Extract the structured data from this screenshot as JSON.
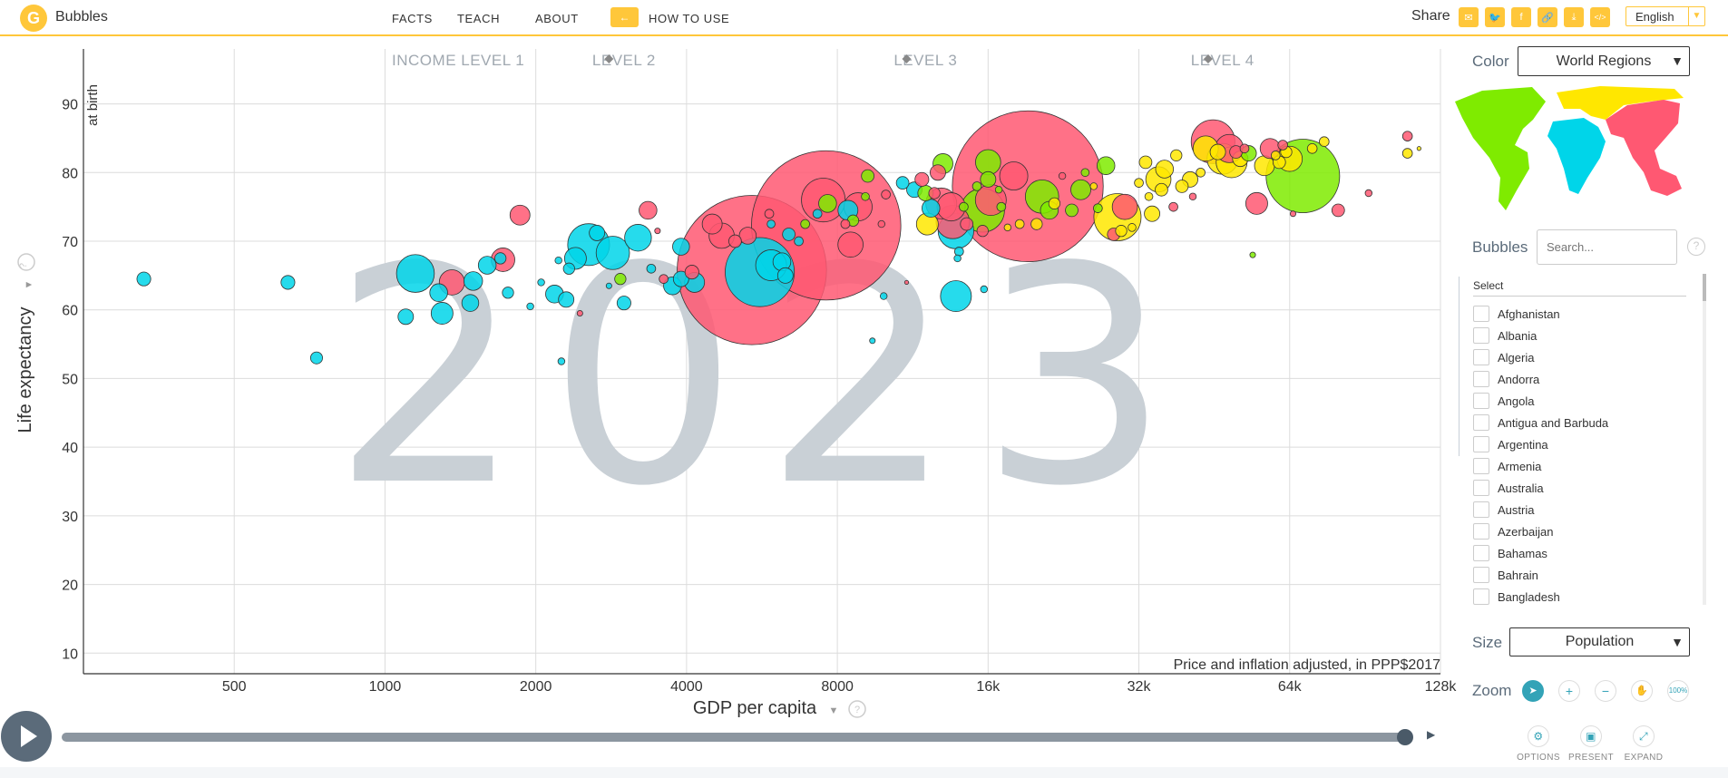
{
  "header": {
    "logo_glyph": "G",
    "app_name": "Bubbles",
    "nav": [
      "FACTS",
      "TEACH",
      "ABOUT"
    ],
    "how_to_use": "HOW TO USE",
    "how_to_icon": "←",
    "share_label": "Share",
    "share_icons": [
      {
        "name": "email-icon",
        "glyph": "✉"
      },
      {
        "name": "twitter-icon",
        "glyph": "🐦"
      },
      {
        "name": "facebook-icon",
        "glyph": "f"
      },
      {
        "name": "link-icon",
        "glyph": "🔗"
      },
      {
        "name": "download-icon",
        "glyph": "⤓"
      },
      {
        "name": "embed-icon",
        "glyph": "</>"
      }
    ],
    "language": "English",
    "language_arrow": "▼"
  },
  "chart_data": {
    "type": "scatter",
    "xlabel": "GDP per capita",
    "ylabel": "Life expectancy",
    "ylabel_sub": "at birth",
    "x_scale": "log2",
    "xlim": [
      250,
      128000
    ],
    "ylim": [
      7,
      98
    ],
    "x_ticks": [
      500,
      1000,
      2000,
      4000,
      8000,
      16000,
      32000,
      64000,
      128000
    ],
    "x_tick_labels": [
      "500",
      "1000",
      "2000",
      "4000",
      "8000",
      "16k",
      "32k",
      "64k",
      "128k"
    ],
    "y_ticks": [
      10,
      20,
      30,
      40,
      50,
      60,
      70,
      80,
      90
    ],
    "y_tick_labels": [
      "10",
      "20",
      "30",
      "40",
      "50",
      "60",
      "70",
      "80",
      "90"
    ],
    "year": "2023",
    "note": "Price and inflation adjusted, in PPP$2017",
    "income_levels": [
      "INCOME LEVEL 1",
      "LEVEL 2",
      "LEVEL 3",
      "LEVEL 4"
    ],
    "income_level_x": [
      1400,
      3000,
      12000,
      47000
    ],
    "income_boundary_x": [
      2800,
      11000,
      44000
    ],
    "region_colors": {
      "africa": "#00d5e9",
      "asia": "#ff5872",
      "americas": "#7feb00",
      "europe": "#ffe700"
    },
    "points": [
      {
        "x": 330,
        "y": 64.5,
        "pop": 12,
        "region": "africa"
      },
      {
        "x": 640,
        "y": 64,
        "pop": 12,
        "region": "africa"
      },
      {
        "x": 730,
        "y": 53,
        "pop": 9,
        "region": "africa"
      },
      {
        "x": 1150,
        "y": 65.3,
        "pop": 90,
        "region": "africa"
      },
      {
        "x": 1100,
        "y": 59,
        "pop": 15,
        "region": "africa"
      },
      {
        "x": 1280,
        "y": 62.5,
        "pop": 20,
        "region": "africa"
      },
      {
        "x": 1300,
        "y": 59.5,
        "pop": 30,
        "region": "africa"
      },
      {
        "x": 1360,
        "y": 64,
        "pop": 40,
        "region": "asia"
      },
      {
        "x": 1480,
        "y": 61,
        "pop": 18,
        "region": "africa"
      },
      {
        "x": 1500,
        "y": 64.2,
        "pop": 22,
        "region": "africa"
      },
      {
        "x": 1600,
        "y": 66.5,
        "pop": 20,
        "region": "africa"
      },
      {
        "x": 1700,
        "y": 67.5,
        "pop": 8,
        "region": "africa"
      },
      {
        "x": 1760,
        "y": 62.5,
        "pop": 8,
        "region": "africa"
      },
      {
        "x": 1720,
        "y": 67.3,
        "pop": 35,
        "region": "asia"
      },
      {
        "x": 1860,
        "y": 73.8,
        "pop": 25,
        "region": "asia"
      },
      {
        "x": 1950,
        "y": 60.5,
        "pop": 3,
        "region": "africa"
      },
      {
        "x": 2050,
        "y": 64,
        "pop": 3,
        "region": "africa"
      },
      {
        "x": 2180,
        "y": 62.3,
        "pop": 20,
        "region": "africa"
      },
      {
        "x": 2220,
        "y": 67.2,
        "pop": 3,
        "region": "africa"
      },
      {
        "x": 2300,
        "y": 61.5,
        "pop": 15,
        "region": "africa"
      },
      {
        "x": 2330,
        "y": 66,
        "pop": 8,
        "region": "africa"
      },
      {
        "x": 2250,
        "y": 52.5,
        "pop": 3,
        "region": "africa"
      },
      {
        "x": 2450,
        "y": 59.5,
        "pop": 2,
        "region": "asia"
      },
      {
        "x": 2550,
        "y": 69.5,
        "pop": 110,
        "region": "africa"
      },
      {
        "x": 2400,
        "y": 67.5,
        "pop": 30,
        "region": "africa"
      },
      {
        "x": 2650,
        "y": 71.2,
        "pop": 15,
        "region": "africa"
      },
      {
        "x": 2850,
        "y": 68.3,
        "pop": 70,
        "region": "africa"
      },
      {
        "x": 2800,
        "y": 63.5,
        "pop": 2,
        "region": "africa"
      },
      {
        "x": 2950,
        "y": 64.5,
        "pop": 8,
        "region": "americas"
      },
      {
        "x": 3000,
        "y": 61,
        "pop": 12,
        "region": "africa"
      },
      {
        "x": 3200,
        "y": 70.5,
        "pop": 45,
        "region": "africa"
      },
      {
        "x": 3350,
        "y": 74.5,
        "pop": 20,
        "region": "asia"
      },
      {
        "x": 3400,
        "y": 66,
        "pop": 5,
        "region": "africa"
      },
      {
        "x": 3500,
        "y": 71.5,
        "pop": 2,
        "region": "asia"
      },
      {
        "x": 3600,
        "y": 64.5,
        "pop": 5,
        "region": "asia"
      },
      {
        "x": 3750,
        "y": 63.5,
        "pop": 20,
        "region": "africa"
      },
      {
        "x": 3900,
        "y": 69.2,
        "pop": 18,
        "region": "africa"
      },
      {
        "x": 3900,
        "y": 64.5,
        "pop": 15,
        "region": "africa"
      },
      {
        "x": 4150,
        "y": 64,
        "pop": 25,
        "region": "africa"
      },
      {
        "x": 4100,
        "y": 65.5,
        "pop": 12,
        "region": "asia"
      },
      {
        "x": 4500,
        "y": 72.5,
        "pop": 25,
        "region": "asia"
      },
      {
        "x": 4700,
        "y": 70.8,
        "pop": 40,
        "region": "asia"
      },
      {
        "x": 5000,
        "y": 70,
        "pop": 10,
        "region": "asia"
      },
      {
        "x": 5300,
        "y": 70.8,
        "pop": 18,
        "region": "asia"
      },
      {
        "x": 5850,
        "y": 74,
        "pop": 5,
        "region": "asia"
      },
      {
        "x": 5900,
        "y": 72.5,
        "pop": 4,
        "region": "africa"
      },
      {
        "x": 5400,
        "y": 65.8,
        "pop": 1400,
        "region": "asia"
      },
      {
        "x": 5600,
        "y": 65.5,
        "pop": 300,
        "region": "africa"
      },
      {
        "x": 5900,
        "y": 66.5,
        "pop": 60,
        "region": "africa"
      },
      {
        "x": 6200,
        "y": 67,
        "pop": 20,
        "region": "africa"
      },
      {
        "x": 6300,
        "y": 65,
        "pop": 15,
        "region": "africa"
      },
      {
        "x": 6400,
        "y": 71,
        "pop": 10,
        "region": "africa"
      },
      {
        "x": 6700,
        "y": 70,
        "pop": 5,
        "region": "africa"
      },
      {
        "x": 6900,
        "y": 72.5,
        "pop": 5,
        "region": "americas"
      },
      {
        "x": 7300,
        "y": 74,
        "pop": 5,
        "region": "africa"
      },
      {
        "x": 7500,
        "y": 76,
        "pop": 120,
        "region": "asia"
      },
      {
        "x": 7650,
        "y": 75.5,
        "pop": 20,
        "region": "americas"
      },
      {
        "x": 7600,
        "y": 72.3,
        "pop": 1400,
        "region": "asia"
      },
      {
        "x": 8400,
        "y": 74.5,
        "pop": 25,
        "region": "africa"
      },
      {
        "x": 8300,
        "y": 72.5,
        "pop": 5,
        "region": "asia"
      },
      {
        "x": 8600,
        "y": 73,
        "pop": 8,
        "region": "americas"
      },
      {
        "x": 8800,
        "y": 75,
        "pop": 50,
        "region": "asia"
      },
      {
        "x": 8500,
        "y": 69.5,
        "pop": 40,
        "region": "asia"
      },
      {
        "x": 9100,
        "y": 76.5,
        "pop": 4,
        "region": "americas"
      },
      {
        "x": 9200,
        "y": 79.5,
        "pop": 10,
        "region": "americas"
      },
      {
        "x": 9400,
        "y": 55.5,
        "pop": 2,
        "region": "africa"
      },
      {
        "x": 9800,
        "y": 72.5,
        "pop": 3,
        "region": "asia"
      },
      {
        "x": 10000,
        "y": 76.8,
        "pop": 5,
        "region": "asia"
      },
      {
        "x": 9900,
        "y": 62,
        "pop": 3,
        "region": "africa"
      },
      {
        "x": 10800,
        "y": 78.5,
        "pop": 10,
        "region": "africa"
      },
      {
        "x": 11000,
        "y": 64,
        "pop": 1,
        "region": "asia"
      },
      {
        "x": 11800,
        "y": 79,
        "pop": 12,
        "region": "asia"
      },
      {
        "x": 11400,
        "y": 77.5,
        "pop": 15,
        "region": "africa"
      },
      {
        "x": 12000,
        "y": 77,
        "pop": 15,
        "region": "americas"
      },
      {
        "x": 12300,
        "y": 74.8,
        "pop": 20,
        "region": "africa"
      },
      {
        "x": 12500,
        "y": 77,
        "pop": 8,
        "region": "asia"
      },
      {
        "x": 12100,
        "y": 72.5,
        "pop": 30,
        "region": "europe"
      },
      {
        "x": 12900,
        "y": 75.5,
        "pop": 60,
        "region": "asia"
      },
      {
        "x": 12700,
        "y": 80,
        "pop": 15,
        "region": "asia"
      },
      {
        "x": 13000,
        "y": 81.3,
        "pop": 25,
        "region": "americas"
      },
      {
        "x": 13500,
        "y": 75,
        "pop": 50,
        "region": "asia"
      },
      {
        "x": 13600,
        "y": 72.8,
        "pop": 70,
        "region": "asia"
      },
      {
        "x": 13800,
        "y": 71.5,
        "pop": 80,
        "region": "africa"
      },
      {
        "x": 13900,
        "y": 67.5,
        "pop": 3,
        "region": "africa"
      },
      {
        "x": 14000,
        "y": 68.5,
        "pop": 5,
        "region": "africa"
      },
      {
        "x": 13800,
        "y": 62,
        "pop": 60,
        "region": "africa"
      },
      {
        "x": 14500,
        "y": 72.5,
        "pop": 10,
        "region": "asia"
      },
      {
        "x": 14300,
        "y": 75,
        "pop": 5,
        "region": "americas"
      },
      {
        "x": 15200,
        "y": 78,
        "pop": 5,
        "region": "americas"
      },
      {
        "x": 15600,
        "y": 74.5,
        "pop": 120,
        "region": "americas"
      },
      {
        "x": 15700,
        "y": 63,
        "pop": 3,
        "region": "africa"
      },
      {
        "x": 15600,
        "y": 71.5,
        "pop": 8,
        "region": "asia"
      },
      {
        "x": 16000,
        "y": 81.5,
        "pop": 40,
        "region": "americas"
      },
      {
        "x": 16000,
        "y": 79,
        "pop": 15,
        "region": "americas"
      },
      {
        "x": 16200,
        "y": 76,
        "pop": 60,
        "region": "asia"
      },
      {
        "x": 16800,
        "y": 77.5,
        "pop": 3,
        "region": "americas"
      },
      {
        "x": 17000,
        "y": 75,
        "pop": 5,
        "region": "americas"
      },
      {
        "x": 17500,
        "y": 72,
        "pop": 3,
        "region": "europe"
      },
      {
        "x": 18000,
        "y": 79.5,
        "pop": 50,
        "region": "asia"
      },
      {
        "x": 18500,
        "y": 72.5,
        "pop": 5,
        "region": "europe"
      },
      {
        "x": 19200,
        "y": 78,
        "pop": 1430,
        "region": "asia"
      },
      {
        "x": 20000,
        "y": 72.5,
        "pop": 8,
        "region": "europe"
      },
      {
        "x": 20500,
        "y": 76.5,
        "pop": 70,
        "region": "americas"
      },
      {
        "x": 21200,
        "y": 74.5,
        "pop": 20,
        "region": "americas"
      },
      {
        "x": 21700,
        "y": 75.5,
        "pop": 8,
        "region": "europe"
      },
      {
        "x": 22500,
        "y": 79.5,
        "pop": 3,
        "region": "asia"
      },
      {
        "x": 23500,
        "y": 74.5,
        "pop": 10,
        "region": "americas"
      },
      {
        "x": 24500,
        "y": 77.5,
        "pop": 25,
        "region": "americas"
      },
      {
        "x": 25000,
        "y": 80,
        "pop": 4,
        "region": "americas"
      },
      {
        "x": 26000,
        "y": 78,
        "pop": 3,
        "region": "europe"
      },
      {
        "x": 26500,
        "y": 74.8,
        "pop": 5,
        "region": "americas"
      },
      {
        "x": 27500,
        "y": 81,
        "pop": 20,
        "region": "americas"
      },
      {
        "x": 28500,
        "y": 71,
        "pop": 10,
        "region": "asia"
      },
      {
        "x": 29000,
        "y": 73.5,
        "pop": 140,
        "region": "europe"
      },
      {
        "x": 29500,
        "y": 71.5,
        "pop": 8,
        "region": "europe"
      },
      {
        "x": 30000,
        "y": 75,
        "pop": 40,
        "region": "asia"
      },
      {
        "x": 31000,
        "y": 72,
        "pop": 4,
        "region": "europe"
      },
      {
        "x": 32000,
        "y": 78.5,
        "pop": 5,
        "region": "europe"
      },
      {
        "x": 33000,
        "y": 81.5,
        "pop": 10,
        "region": "europe"
      },
      {
        "x": 33500,
        "y": 76.5,
        "pop": 4,
        "region": "europe"
      },
      {
        "x": 34000,
        "y": 74,
        "pop": 15,
        "region": "europe"
      },
      {
        "x": 35000,
        "y": 79,
        "pop": 40,
        "region": "europe"
      },
      {
        "x": 35500,
        "y": 77.5,
        "pop": 10,
        "region": "europe"
      },
      {
        "x": 36000,
        "y": 80.5,
        "pop": 20,
        "region": "europe"
      },
      {
        "x": 37500,
        "y": 75,
        "pop": 5,
        "region": "asia"
      },
      {
        "x": 38000,
        "y": 82.5,
        "pop": 8,
        "region": "europe"
      },
      {
        "x": 39000,
        "y": 78,
        "pop": 10,
        "region": "europe"
      },
      {
        "x": 40500,
        "y": 79,
        "pop": 15,
        "region": "europe"
      },
      {
        "x": 41000,
        "y": 76.5,
        "pop": 3,
        "region": "asia"
      },
      {
        "x": 42500,
        "y": 80,
        "pop": 5,
        "region": "europe"
      },
      {
        "x": 43500,
        "y": 83.5,
        "pop": 40,
        "region": "europe"
      },
      {
        "x": 45000,
        "y": 84.5,
        "pop": 120,
        "region": "asia"
      },
      {
        "x": 46000,
        "y": 83,
        "pop": 15,
        "region": "europe"
      },
      {
        "x": 47000,
        "y": 82,
        "pop": 60,
        "region": "europe"
      },
      {
        "x": 48500,
        "y": 83.5,
        "pop": 50,
        "region": "asia"
      },
      {
        "x": 49000,
        "y": 81.5,
        "pop": 60,
        "region": "europe"
      },
      {
        "x": 50000,
        "y": 83,
        "pop": 10,
        "region": "asia"
      },
      {
        "x": 51000,
        "y": 82,
        "pop": 15,
        "region": "europe"
      },
      {
        "x": 52000,
        "y": 83.5,
        "pop": 5,
        "region": "asia"
      },
      {
        "x": 53000,
        "y": 82.8,
        "pop": 15,
        "region": "americas"
      },
      {
        "x": 54000,
        "y": 68,
        "pop": 2,
        "region": "americas"
      },
      {
        "x": 55000,
        "y": 75.5,
        "pop": 30,
        "region": "asia"
      },
      {
        "x": 57000,
        "y": 81,
        "pop": 25,
        "region": "europe"
      },
      {
        "x": 58500,
        "y": 83.5,
        "pop": 25,
        "region": "asia"
      },
      {
        "x": 60000,
        "y": 82.5,
        "pop": 5,
        "region": "europe"
      },
      {
        "x": 61000,
        "y": 81.5,
        "pop": 10,
        "region": "europe"
      },
      {
        "x": 62000,
        "y": 84,
        "pop": 6,
        "region": "asia"
      },
      {
        "x": 63000,
        "y": 83,
        "pop": 8,
        "region": "europe"
      },
      {
        "x": 64000,
        "y": 82,
        "pop": 40,
        "region": "europe"
      },
      {
        "x": 65000,
        "y": 74,
        "pop": 2,
        "region": "asia"
      },
      {
        "x": 68000,
        "y": 79.5,
        "pop": 340,
        "region": "americas"
      },
      {
        "x": 71000,
        "y": 83.5,
        "pop": 6,
        "region": "europe"
      },
      {
        "x": 75000,
        "y": 84.5,
        "pop": 6,
        "region": "europe"
      },
      {
        "x": 80000,
        "y": 74.5,
        "pop": 10,
        "region": "asia"
      },
      {
        "x": 92000,
        "y": 77,
        "pop": 3,
        "region": "asia"
      },
      {
        "x": 110000,
        "y": 85.3,
        "pop": 6,
        "region": "asia"
      },
      {
        "x": 110000,
        "y": 82.8,
        "pop": 6,
        "region": "europe"
      },
      {
        "x": 116000,
        "y": 83.5,
        "pop": 1,
        "region": "europe"
      }
    ]
  },
  "controls": {
    "color_label": "Color",
    "color_value": "World Regions",
    "select_arrow": "▼",
    "bubbles_label": "Bubbles",
    "search_placeholder": "Search...",
    "help_glyph": "?",
    "select_header": "Select",
    "countries": [
      "Afghanistan",
      "Albania",
      "Algeria",
      "Andorra",
      "Angola",
      "Antigua and Barbuda",
      "Argentina",
      "Armenia",
      "Australia",
      "Austria",
      "Azerbaijan",
      "Bahamas",
      "Bahrain",
      "Bangladesh"
    ],
    "size_label": "Size",
    "size_value": "Population",
    "zoom_label": "Zoom",
    "zoom_buttons": [
      {
        "name": "zoom-cursor-icon",
        "glyph": "➤"
      },
      {
        "name": "zoom-in-icon",
        "glyph": "+"
      },
      {
        "name": "zoom-out-icon",
        "glyph": "−"
      },
      {
        "name": "zoom-pan-icon",
        "glyph": "✋"
      },
      {
        "name": "zoom-reset-icon",
        "glyph": "100%"
      }
    ],
    "tools": [
      {
        "name": "options",
        "label": "OPTIONS",
        "glyph": "⚙"
      },
      {
        "name": "present",
        "label": "PRESENT",
        "glyph": "▣"
      },
      {
        "name": "expand",
        "label": "EXPAND",
        "glyph": "⤢"
      }
    ]
  },
  "timeline": {
    "end_glyph": "▶"
  }
}
